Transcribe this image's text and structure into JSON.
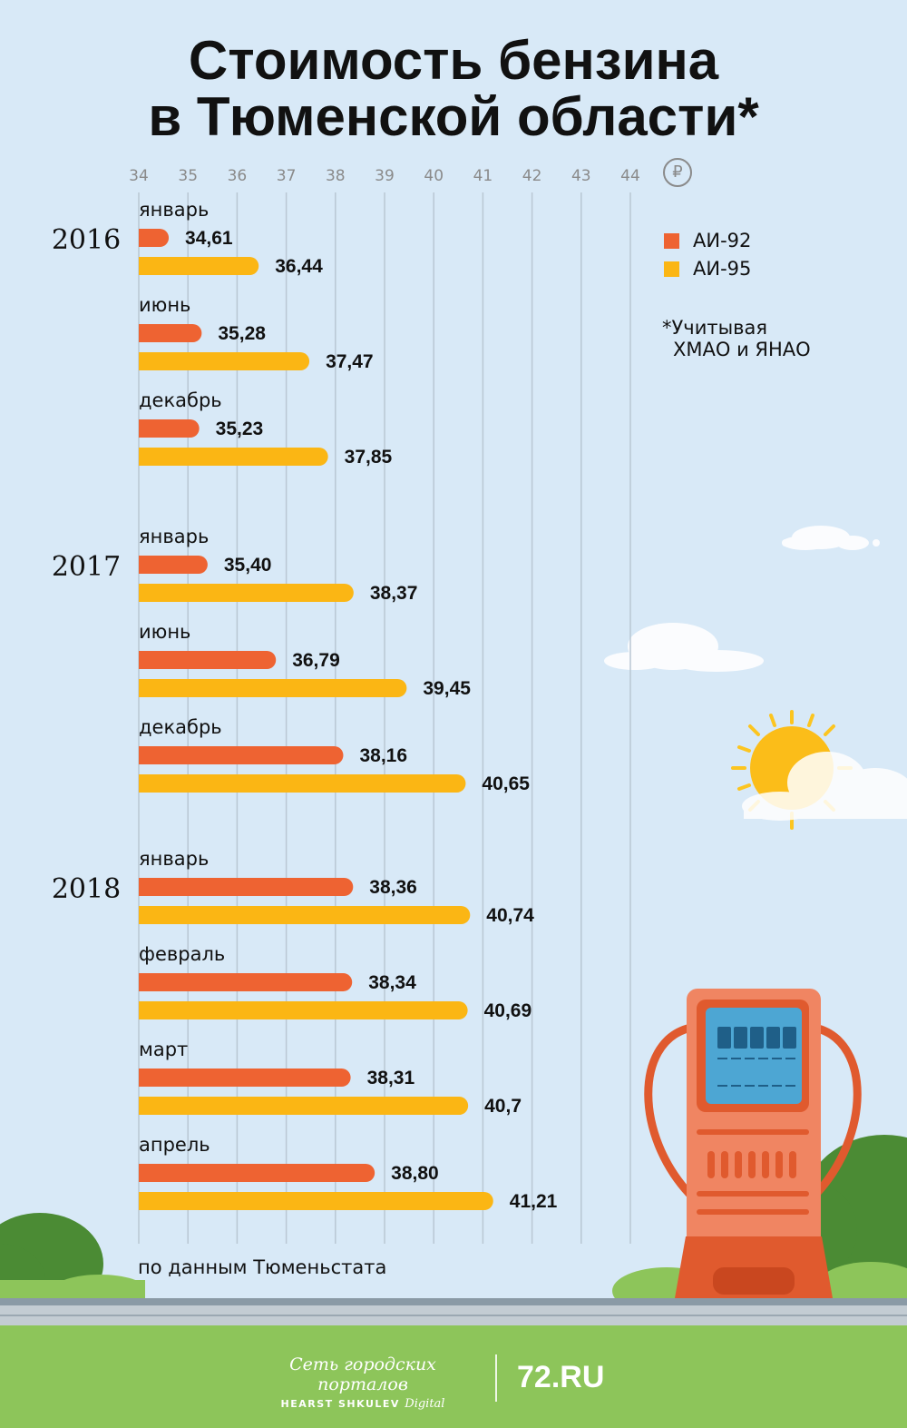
{
  "title_line1": "Стоимость бензина",
  "title_line2": "в Тюменской области*",
  "legend": [
    {
      "label": "АИ-92",
      "color": "#ee6332"
    },
    {
      "label": "АИ-95",
      "color": "#fbb614"
    }
  ],
  "footnote_line1": "*Учитывая",
  "footnote_line2": "ХМАО и ЯНАО",
  "currency_symbol": "₽",
  "source": "по данным Тюменьстата",
  "footer": {
    "network": "Сеть городских порталов",
    "company": "HEARST SHKULEV",
    "company_suffix": "Digital",
    "brand": "72.RU"
  },
  "chart_data": {
    "type": "bar",
    "orientation": "horizontal",
    "xlim": [
      34,
      44
    ],
    "ticks": [
      34,
      35,
      36,
      37,
      38,
      39,
      40,
      41,
      42,
      43,
      44
    ],
    "grid": true,
    "legend_position": "top-right",
    "series_names": [
      "АИ-92",
      "АИ-95"
    ],
    "groups": [
      {
        "year": "2016",
        "months": [
          {
            "label": "январь",
            "ai92": 34.61,
            "ai92_label": "34,61",
            "ai95": 36.44,
            "ai95_label": "36,44"
          },
          {
            "label": "июнь",
            "ai92": 35.28,
            "ai92_label": "35,28",
            "ai95": 37.47,
            "ai95_label": "37,47"
          },
          {
            "label": "декабрь",
            "ai92": 35.23,
            "ai92_label": "35,23",
            "ai95": 37.85,
            "ai95_label": "37,85"
          }
        ]
      },
      {
        "year": "2017",
        "months": [
          {
            "label": "январь",
            "ai92": 35.4,
            "ai92_label": "35,40",
            "ai95": 38.37,
            "ai95_label": "38,37"
          },
          {
            "label": "июнь",
            "ai92": 36.79,
            "ai92_label": "36,79",
            "ai95": 39.45,
            "ai95_label": "39,45"
          },
          {
            "label": "декабрь",
            "ai92": 38.16,
            "ai92_label": "38,16",
            "ai95": 40.65,
            "ai95_label": "40,65"
          }
        ]
      },
      {
        "year": "2018",
        "months": [
          {
            "label": "январь",
            "ai92": 38.36,
            "ai92_label": "38,36",
            "ai95": 40.74,
            "ai95_label": "40,74"
          },
          {
            "label": "февраль",
            "ai92": 38.34,
            "ai92_label": "38,34",
            "ai95": 40.69,
            "ai95_label": "40,69"
          },
          {
            "label": "март",
            "ai92": 38.31,
            "ai92_label": "38,31",
            "ai95": 40.7,
            "ai95_label": "40,7"
          },
          {
            "label": "апрель",
            "ai92": 38.8,
            "ai92_label": "38,80",
            "ai95": 41.21,
            "ai95_label": "41,21"
          }
        ]
      }
    ]
  }
}
